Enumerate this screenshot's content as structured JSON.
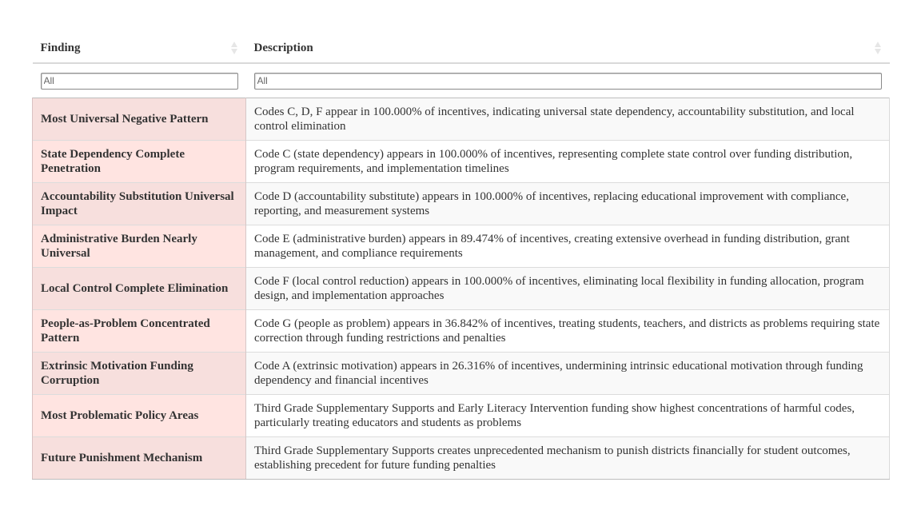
{
  "table": {
    "columns": [
      {
        "label": "Finding"
      },
      {
        "label": "Description"
      }
    ],
    "filters": [
      {
        "placeholder": "All",
        "value": ""
      },
      {
        "placeholder": "All",
        "value": ""
      }
    ],
    "rows": [
      {
        "finding": "Most Universal Negative Pattern",
        "description": "Codes C, D, F appear in 100.000% of incentives, indicating universal state dependency, accountability substitution, and local control elimination"
      },
      {
        "finding": "State Dependency Complete Penetration",
        "description": "Code C (state dependency) appears in 100.000% of incentives, representing complete state control over funding distribution, program requirements, and implementation timelines"
      },
      {
        "finding": "Accountability Substitution Universal Impact",
        "description": "Code D (accountability substitute) appears in 100.000% of incentives, replacing educational improvement with compliance, reporting, and measurement systems"
      },
      {
        "finding": "Administrative Burden Nearly Universal",
        "description": "Code E (administrative burden) appears in 89.474% of incentives, creating extensive overhead in funding distribution, grant management, and compliance requirements"
      },
      {
        "finding": "Local Control Complete Elimination",
        "description": "Code F (local control reduction) appears in 100.000% of incentives, eliminating local flexibility in funding allocation, program design, and implementation approaches"
      },
      {
        "finding": "People-as-Problem Concentrated Pattern",
        "description": "Code G (people as problem) appears in 36.842% of incentives, treating students, teachers, and districts as problems requiring state correction through funding restrictions and penalties"
      },
      {
        "finding": "Extrinsic Motivation Funding Corruption",
        "description": "Code A (extrinsic motivation) appears in 26.316% of incentives, undermining intrinsic educational motivation through funding dependency and financial incentives"
      },
      {
        "finding": "Most Problematic Policy Areas",
        "description": "Third Grade Supplementary Supports and Early Literacy Intervention funding show highest concentrations of harmful codes, particularly treating educators and students as problems"
      },
      {
        "finding": "Future Punishment Mechanism",
        "description": "Third Grade Supplementary Supports creates unprecedented mechanism to punish districts financially for student outcomes, establishing precedent for future funding penalties"
      }
    ]
  },
  "icons": {
    "sort": "sort-up-down-icon"
  },
  "colors": {
    "finding_odd_bg": "#f7dfdd",
    "finding_even_bg": "#ffe4e1",
    "desc_odd_bg": "#f9f9f9",
    "desc_even_bg": "#ffffff"
  }
}
